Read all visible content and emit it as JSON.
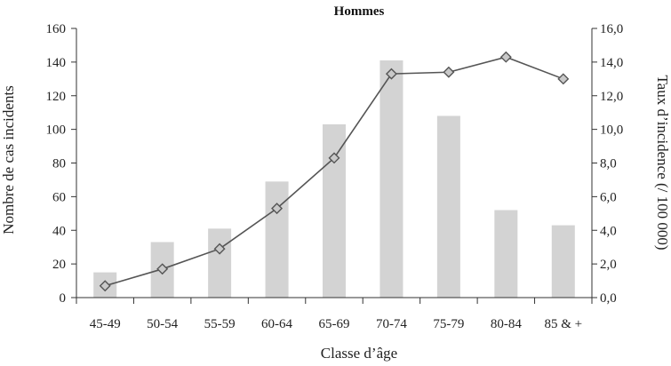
{
  "chart_data": {
    "type": "bar",
    "title": "Hommes",
    "xlabel": "Classe d’âge",
    "ylabel": "Nombre de cas incidents",
    "y2label": "Taux d’incidence (/ 100 000)",
    "categories": [
      "45-49",
      "50-54",
      "55-59",
      "60-64",
      "65-69",
      "70-74",
      "75-79",
      "80-84",
      "85 & +"
    ],
    "series": [
      {
        "type": "bar",
        "axis": "left",
        "values": [
          15,
          33,
          41,
          69,
          103,
          141,
          108,
          52,
          43
        ]
      },
      {
        "type": "line",
        "axis": "right",
        "marker": "diamond",
        "values": [
          0.7,
          1.7,
          2.9,
          5.3,
          8.3,
          13.3,
          13.4,
          14.3,
          13.0
        ]
      }
    ],
    "ylim": [
      0,
      160
    ],
    "y_ticks": [
      "0",
      "20",
      "40",
      "60",
      "80",
      "100",
      "120",
      "140",
      "160"
    ],
    "y2lim": [
      0,
      16
    ],
    "y2_ticks": [
      "0,0",
      "2,0",
      "4,0",
      "6,0",
      "8,0",
      "10,0",
      "12,0",
      "14,0",
      "16,0"
    ],
    "grid": false,
    "colors": {
      "bar": "#d3d3d3",
      "line": "#555555",
      "marker_fill": "#c9c9c9",
      "axis": "#333333"
    }
  }
}
